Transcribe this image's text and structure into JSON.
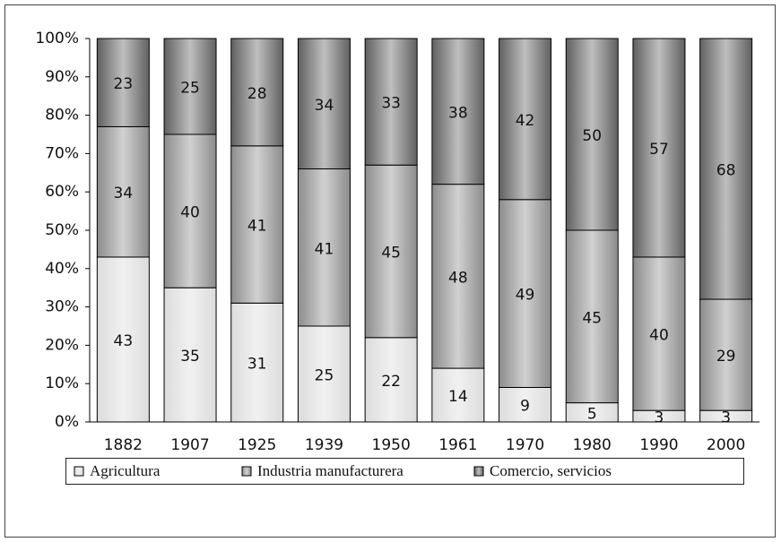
{
  "chart_data": {
    "type": "bar",
    "stacked": true,
    "categories": [
      "1882",
      "1907",
      "1925",
      "1939",
      "1950",
      "1961",
      "1970",
      "1980",
      "1990",
      "2000"
    ],
    "series": [
      {
        "name": "Agricultura",
        "color": "#dcdcdc",
        "values": [
          43,
          35,
          31,
          25,
          22,
          14,
          9,
          5,
          3,
          3
        ]
      },
      {
        "name": "Industria manufacturera",
        "color": "#8c8c8c",
        "values": [
          34,
          40,
          41,
          41,
          45,
          48,
          49,
          45,
          40,
          29
        ]
      },
      {
        "name": "Comercio, servicios",
        "color": "#606060",
        "values": [
          23,
          25,
          28,
          34,
          33,
          38,
          42,
          50,
          57,
          68
        ]
      }
    ],
    "ylim": [
      0,
      100
    ],
    "yticks": [
      {
        "value": 0,
        "label": "0%"
      },
      {
        "value": 10,
        "label": "10%"
      },
      {
        "value": 20,
        "label": "20%"
      },
      {
        "value": 30,
        "label": "30%"
      },
      {
        "value": 40,
        "label": "40%"
      },
      {
        "value": 50,
        "label": "50%"
      },
      {
        "value": 60,
        "label": "60%"
      },
      {
        "value": 70,
        "label": "70%"
      },
      {
        "value": 80,
        "label": "80%"
      },
      {
        "value": 90,
        "label": "90%"
      },
      {
        "value": 100,
        "label": "100%"
      }
    ],
    "legend": "bottom"
  }
}
